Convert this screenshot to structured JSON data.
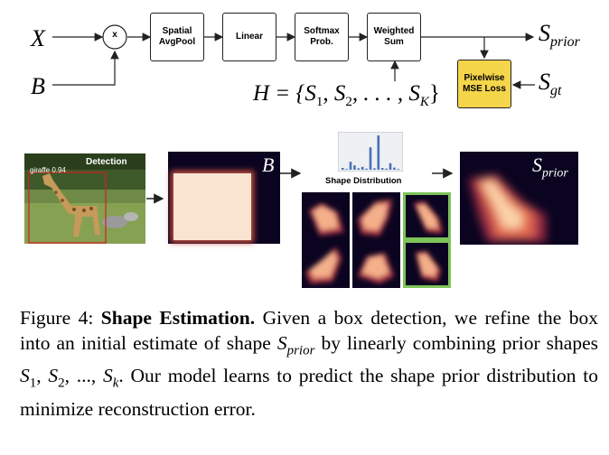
{
  "diagram": {
    "input_x": "X",
    "input_b": "B",
    "multiply_symbol": "x",
    "blocks": {
      "pool": "Spatial\nAvgPool",
      "linear": "Linear",
      "softmax": "Softmax\nProb.",
      "weighted": "Weighted\nSum",
      "mse": "Pixelwise\nMSE Loss"
    },
    "output_prior": {
      "base": "S",
      "sub": "prior"
    },
    "ground_truth": {
      "base": "S",
      "sub": "gt"
    },
    "shape_set": {
      "prefix": "H = {S",
      "s1": "1",
      "mid1": ", S",
      "s2": "2",
      "mid2": ", . . . , S",
      "sk": "K",
      "suffix": "}"
    }
  },
  "illustration": {
    "detection_label": "Detection",
    "detection_box_label": "giraffe 0.94",
    "box_label": "B",
    "shape_distribution_title": "Shape Distribution",
    "prior_label": {
      "base": "S",
      "sub": "prior"
    },
    "histogram_values": [
      0.05,
      0.02,
      0.22,
      0.12,
      0.04,
      0.08,
      0.03,
      0.62,
      0.04,
      0.95,
      0.05,
      0.03,
      0.18,
      0.06,
      0.02
    ],
    "selected_shapes": [
      false,
      false,
      true,
      false,
      false,
      true
    ],
    "colors": {
      "accent": "#7dc35a",
      "mse_fill": "#f5d54a",
      "hist_bar": "#4a72b8",
      "heatmap_bg": "#0b0420",
      "box_fill": "#f9e4d2"
    }
  },
  "caption": {
    "figure_label": "Figure 4:",
    "title": "Shape Estimation.",
    "text1": "Given a box detection, we refine the box into an initial estimate of shape ",
    "sprior_base": "S",
    "sprior_sub": "prior",
    "text2": " by linearly combining prior shapes ",
    "shapes_math": "S",
    "s1": "1",
    "s2": "2",
    "sk": "k",
    "text3": ". Our model learns to predict the shape prior distribution to minimize reconstruction error."
  }
}
